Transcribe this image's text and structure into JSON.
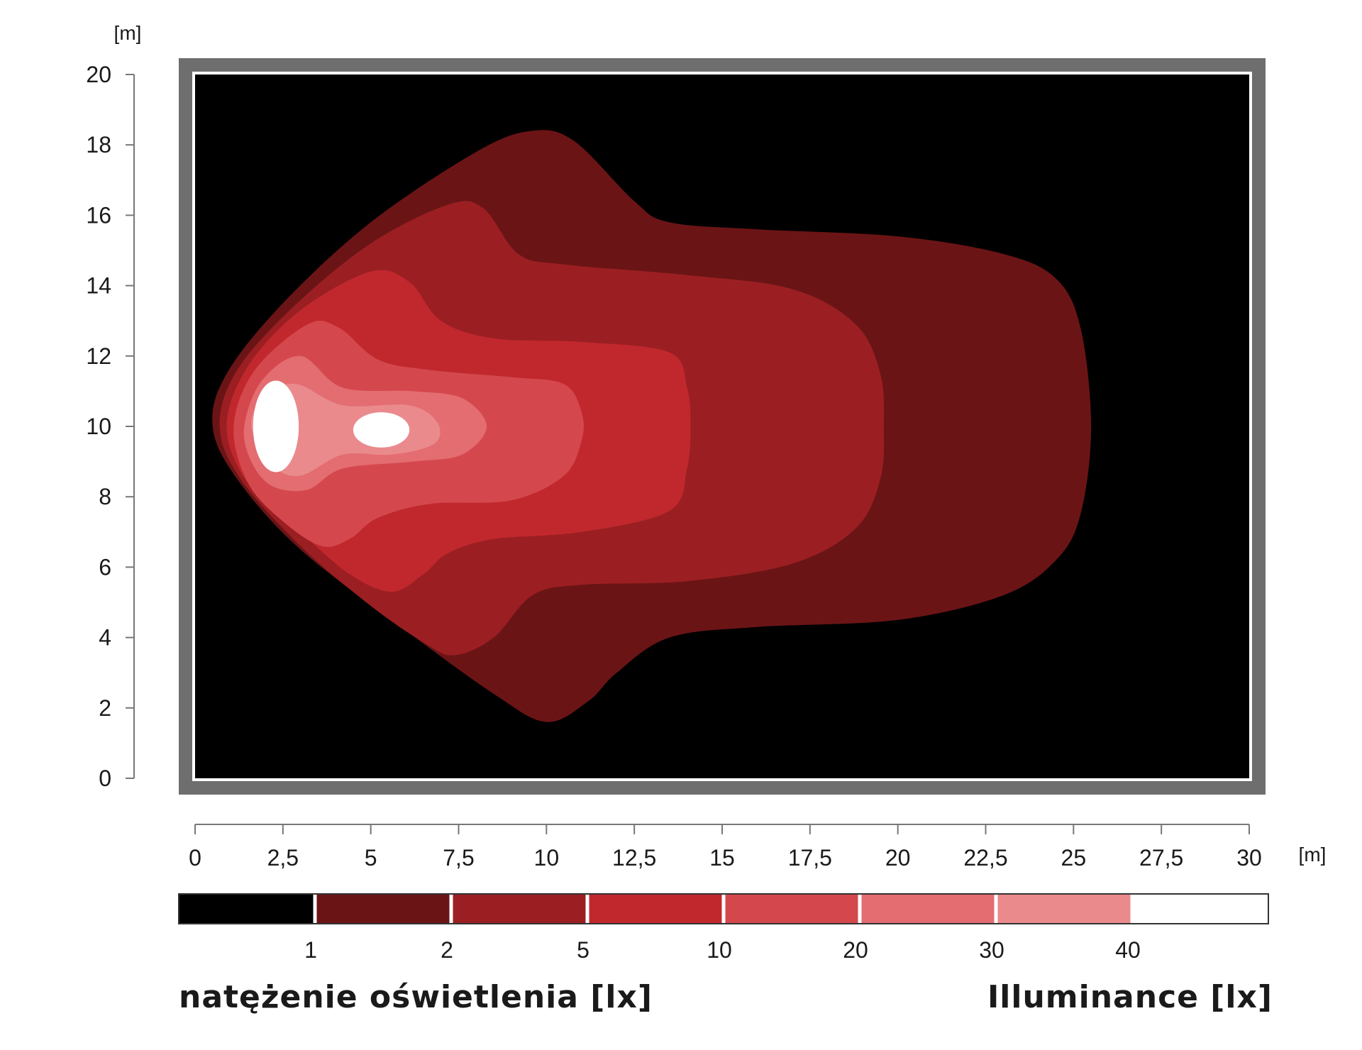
{
  "chart_data": {
    "type": "heatmap",
    "subtype": "isolux contour map",
    "x_unit": "[m]",
    "y_unit": "[m]",
    "xlim": [
      0,
      30
    ],
    "ylim": [
      0,
      20
    ],
    "x_ticks": [
      "0",
      "2,5",
      "5",
      "7,5",
      "10",
      "12,5",
      "15",
      "17,5",
      "20",
      "22,5",
      "25",
      "27,5",
      "30"
    ],
    "y_ticks": [
      "0",
      "2",
      "4",
      "6",
      "8",
      "10",
      "12",
      "14",
      "16",
      "18",
      "20"
    ],
    "background_color": "#000000",
    "levels": [
      {
        "label": "1",
        "lux": 1,
        "color": "#6b1416",
        "points": [
          [
            0.5,
            10
          ],
          [
            0.9,
            11.5
          ],
          [
            2.5,
            13.5
          ],
          [
            5,
            15.8
          ],
          [
            8,
            17.8
          ],
          [
            9.6,
            18.4
          ],
          [
            10.8,
            18.1
          ],
          [
            12.5,
            16.4
          ],
          [
            13.5,
            15.8
          ],
          [
            16,
            15.6
          ],
          [
            20,
            15.4
          ],
          [
            23,
            14.9
          ],
          [
            24.5,
            14.2
          ],
          [
            25.2,
            12.8
          ],
          [
            25.5,
            10
          ],
          [
            25.2,
            7.5
          ],
          [
            24.5,
            6.2
          ],
          [
            23,
            5.2
          ],
          [
            20,
            4.5
          ],
          [
            16,
            4.3
          ],
          [
            13.5,
            4
          ],
          [
            12,
            3
          ],
          [
            11.2,
            2.2
          ],
          [
            10,
            1.6
          ],
          [
            8.5,
            2.4
          ],
          [
            6,
            4.2
          ],
          [
            3,
            6.5
          ],
          [
            1.2,
            8.5
          ]
        ]
      },
      {
        "label": "2",
        "lux": 2,
        "color": "#9b1f22",
        "points": [
          [
            0.7,
            10
          ],
          [
            1.2,
            11.6
          ],
          [
            2.8,
            13.4
          ],
          [
            5,
            15.2
          ],
          [
            7.2,
            16.3
          ],
          [
            8.2,
            16.2
          ],
          [
            9.2,
            14.9
          ],
          [
            10.5,
            14.6
          ],
          [
            14,
            14.3
          ],
          [
            17,
            13.9
          ],
          [
            18.8,
            12.9
          ],
          [
            19.5,
            11.5
          ],
          [
            19.6,
            10
          ],
          [
            19.5,
            8.5
          ],
          [
            18.8,
            7.1
          ],
          [
            17,
            6.1
          ],
          [
            14,
            5.6
          ],
          [
            11,
            5.5
          ],
          [
            9.6,
            5.2
          ],
          [
            8.5,
            4
          ],
          [
            7.4,
            3.5
          ],
          [
            6.6,
            3.8
          ],
          [
            5,
            4.9
          ],
          [
            3,
            6.6
          ],
          [
            1.3,
            8.5
          ]
        ]
      },
      {
        "label": "5",
        "lux": 5,
        "color": "#c1282d",
        "points": [
          [
            0.9,
            10
          ],
          [
            1.5,
            11.7
          ],
          [
            3,
            13.3
          ],
          [
            5,
            14.4
          ],
          [
            6.1,
            14.1
          ],
          [
            7,
            13
          ],
          [
            8.5,
            12.5
          ],
          [
            11,
            12.4
          ],
          [
            13.5,
            12.1
          ],
          [
            14,
            11.1
          ],
          [
            14.1,
            10
          ],
          [
            14,
            8.8
          ],
          [
            13.5,
            7.6
          ],
          [
            11,
            7
          ],
          [
            8.5,
            6.8
          ],
          [
            7.2,
            6.4
          ],
          [
            6.5,
            5.8
          ],
          [
            5.6,
            5.3
          ],
          [
            4.4,
            5.8
          ],
          [
            3,
            7
          ],
          [
            1.5,
            8.4
          ]
        ]
      },
      {
        "label": "10",
        "lux": 10,
        "color": "#d4484d",
        "points": [
          [
            1.1,
            10
          ],
          [
            1.7,
            11.6
          ],
          [
            3.2,
            12.9
          ],
          [
            4.1,
            12.8
          ],
          [
            5.2,
            11.9
          ],
          [
            6.7,
            11.6
          ],
          [
            9,
            11.4
          ],
          [
            10.5,
            11.2
          ],
          [
            11,
            10.4
          ],
          [
            11,
            9.6
          ],
          [
            10.5,
            8.6
          ],
          [
            9,
            7.9
          ],
          [
            6.7,
            7.8
          ],
          [
            5.2,
            7.4
          ],
          [
            4.4,
            6.8
          ],
          [
            3.6,
            6.6
          ],
          [
            2.5,
            7.3
          ],
          [
            1.5,
            8.4
          ]
        ]
      },
      {
        "label": "20",
        "lux": 20,
        "color": "#e36d71",
        "points": [
          [
            1.4,
            10
          ],
          [
            1.9,
            11.3
          ],
          [
            3,
            12
          ],
          [
            4.2,
            11.1
          ],
          [
            6.2,
            11
          ],
          [
            7.6,
            10.8
          ],
          [
            8.3,
            10
          ],
          [
            7.6,
            9.2
          ],
          [
            6.2,
            9
          ],
          [
            4.2,
            8.8
          ],
          [
            3.2,
            8.2
          ],
          [
            2.2,
            8.3
          ],
          [
            1.6,
            9
          ]
        ]
      },
      {
        "label": "30",
        "lux": 30,
        "color": "#ea8a8d",
        "points": [
          [
            1.6,
            10
          ],
          [
            2,
            10.9
          ],
          [
            2.9,
            11.2
          ],
          [
            4.2,
            10.6
          ],
          [
            6.1,
            10.6
          ],
          [
            6.9,
            10.1
          ],
          [
            6.8,
            9.5
          ],
          [
            5.6,
            9.2
          ],
          [
            4.2,
            9.2
          ],
          [
            3,
            8.6
          ],
          [
            2.2,
            8.9
          ]
        ]
      }
    ],
    "white_zones": [
      {
        "cx": 2.3,
        "cy": 10,
        "rx": 0.65,
        "ry": 1.3,
        "color": "#ffffff"
      },
      {
        "cx": 5.3,
        "cy": 9.9,
        "rx": 0.8,
        "ry": 0.5,
        "color": "#ffffff"
      }
    ],
    "legend": {
      "values": [
        "1",
        "2",
        "5",
        "10",
        "20",
        "30",
        "40"
      ],
      "colors": [
        "#000000",
        "#6b1416",
        "#9b1f22",
        "#c1282d",
        "#d4484d",
        "#e36d71",
        "#ea8a8d",
        "#ffffff"
      ]
    }
  },
  "captions": {
    "left": "natężenie oświetlenia [lx]",
    "right": "Illuminance [lx]"
  }
}
